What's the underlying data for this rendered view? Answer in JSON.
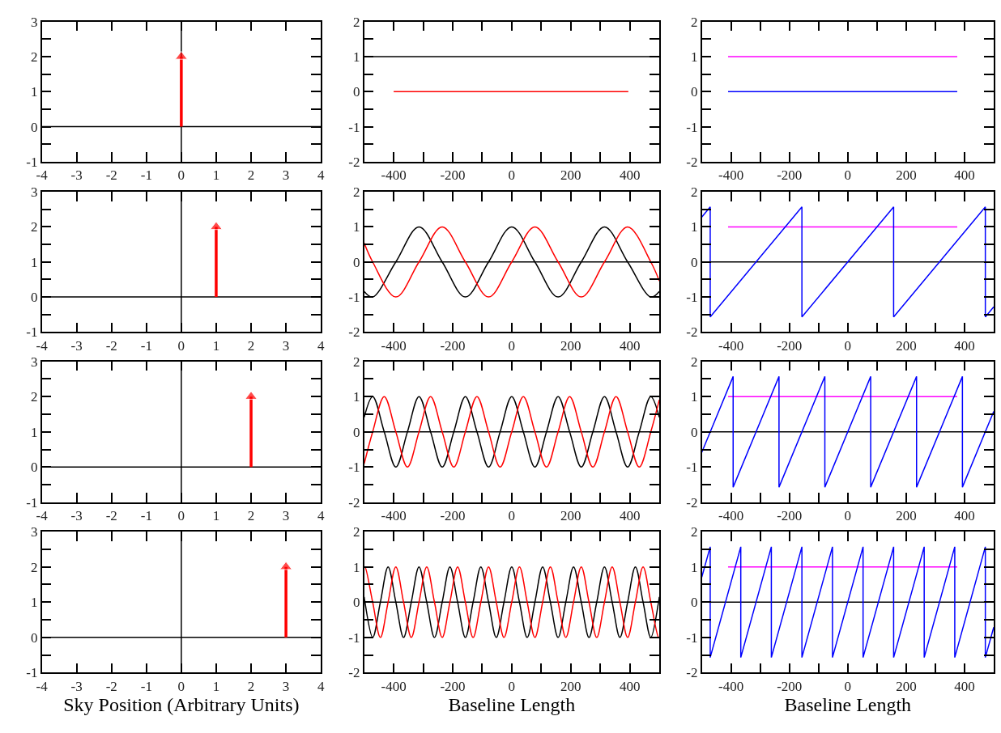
{
  "chart_data": [
    {
      "type": "line",
      "xlim": [
        -4,
        4
      ],
      "ylim": [
        -1,
        3
      ],
      "xticks": [
        -4,
        -3,
        -2,
        -1,
        0,
        1,
        2,
        3,
        4
      ],
      "yticks": [
        -1,
        {
          "value": -0.5,
          "label": null
        },
        0,
        {
          "value": 0.5,
          "label": null
        },
        1,
        {
          "value": 1.5,
          "label": null
        },
        2,
        {
          "value": 2.5,
          "label": null
        },
        3
      ],
      "grid": false,
      "ref_lines": [
        {
          "axis": "y",
          "value": 0,
          "color": "#000000"
        },
        {
          "axis": "x",
          "value": 0,
          "color": "#000000"
        }
      ],
      "series": [
        {
          "color": "#ff0000",
          "x": [
            0,
            0
          ],
          "values": [
            0,
            2
          ],
          "marker": "triangle"
        }
      ]
    },
    {
      "type": "line",
      "xlim": [
        -500,
        500
      ],
      "ylim": [
        -2,
        2
      ],
      "xticks": [
        -400,
        {
          "value": -300,
          "label": null
        },
        -200,
        {
          "value": -100,
          "label": null
        },
        0,
        {
          "value": 100,
          "label": null
        },
        200,
        {
          "value": 300,
          "label": null
        },
        400
      ],
      "yticks": [
        -2,
        {
          "value": -1.5,
          "label": null
        },
        -1,
        {
          "value": -0.5,
          "label": null
        },
        0,
        {
          "value": 0.5,
          "label": null
        },
        1,
        {
          "value": 1.5,
          "label": null
        },
        2
      ],
      "grid": false,
      "series": [
        {
          "color": "#000000",
          "x": [
            -500,
            500
          ],
          "values": [
            1,
            1
          ]
        },
        {
          "color": "#ff0000",
          "x": [
            -400,
            395
          ],
          "values": [
            0,
            0
          ]
        }
      ]
    },
    {
      "type": "line",
      "xlim": [
        -500,
        500
      ],
      "ylim": [
        -2,
        2
      ],
      "xticks": [
        -400,
        {
          "value": -300,
          "label": null
        },
        -200,
        {
          "value": -100,
          "label": null
        },
        0,
        {
          "value": 100,
          "label": null
        },
        200,
        {
          "value": 300,
          "label": null
        },
        400
      ],
      "yticks": [
        -2,
        {
          "value": -1.5,
          "label": null
        },
        -1,
        {
          "value": -0.5,
          "label": null
        },
        0,
        {
          "value": 0.5,
          "label": null
        },
        1,
        {
          "value": 1.5,
          "label": null
        },
        2
      ],
      "grid": false,
      "series": [
        {
          "color": "#ff00ff",
          "x": [
            -410,
            375
          ],
          "values": [
            1,
            1
          ]
        },
        {
          "color": "#0000ff",
          "x": [
            -410,
            375
          ],
          "values": [
            0,
            0
          ]
        }
      ]
    },
    {
      "type": "line",
      "xlim": [
        -4,
        4
      ],
      "ylim": [
        -1,
        3
      ],
      "xticks": [
        -4,
        -3,
        -2,
        -1,
        0,
        1,
        2,
        3,
        4
      ],
      "yticks": [
        -1,
        {
          "value": -0.5,
          "label": null
        },
        0,
        {
          "value": 0.5,
          "label": null
        },
        1,
        {
          "value": 1.5,
          "label": null
        },
        2,
        {
          "value": 2.5,
          "label": null
        },
        3
      ],
      "grid": false,
      "ref_lines": [
        {
          "axis": "y",
          "value": 0,
          "color": "#000000"
        },
        {
          "axis": "x",
          "value": 0,
          "color": "#000000"
        }
      ],
      "series": [
        {
          "color": "#ff0000",
          "x": [
            1,
            1
          ],
          "values": [
            0,
            2
          ],
          "marker": "triangle"
        }
      ]
    },
    {
      "type": "line",
      "xlim": [
        -500,
        500
      ],
      "ylim": [
        -2,
        2
      ],
      "xticks": [
        -400,
        {
          "value": -300,
          "label": null
        },
        -200,
        {
          "value": -100,
          "label": null
        },
        0,
        {
          "value": 100,
          "label": null
        },
        200,
        {
          "value": 300,
          "label": null
        },
        400
      ],
      "yticks": [
        -2,
        {
          "value": -1.5,
          "label": null
        },
        -1,
        {
          "value": -0.5,
          "label": null
        },
        0,
        {
          "value": 0.5,
          "label": null
        },
        1,
        {
          "value": 1.5,
          "label": null
        },
        2
      ],
      "grid": false,
      "ref_lines": [
        {
          "axis": "y",
          "value": 0,
          "color": "#000000"
        }
      ],
      "series": [
        {
          "color": "#000000",
          "x": [
            -500,
            -471.2,
            -392.7,
            -314.2,
            -235.6,
            -157.1,
            -78.5,
            0,
            78.5,
            157.1,
            235.6,
            314.2,
            392.7,
            471.2,
            500
          ],
          "values": [
            -0.84,
            -1,
            0,
            1,
            0,
            -1,
            0,
            1,
            0,
            -1,
            0,
            1,
            0,
            -1,
            -0.84
          ]
        },
        {
          "color": "#ff0000",
          "x": [
            -500,
            -471.2,
            -392.7,
            -314.2,
            -235.6,
            -157.1,
            -78.5,
            0,
            78.5,
            157.1,
            235.6,
            314.2,
            392.7,
            471.2,
            500
          ],
          "values": [
            0.54,
            0,
            -1,
            0,
            1,
            0,
            -1,
            0,
            1,
            0,
            -1,
            0,
            1,
            0,
            -0.54
          ]
        }
      ]
    },
    {
      "type": "line",
      "xlim": [
        -500,
        500
      ],
      "ylim": [
        -2,
        2
      ],
      "xticks": [
        -400,
        {
          "value": -300,
          "label": null
        },
        -200,
        {
          "value": -100,
          "label": null
        },
        0,
        {
          "value": 100,
          "label": null
        },
        200,
        {
          "value": 300,
          "label": null
        },
        400
      ],
      "yticks": [
        -2,
        {
          "value": -1.5,
          "label": null
        },
        -1,
        {
          "value": -0.5,
          "label": null
        },
        0,
        {
          "value": 0.5,
          "label": null
        },
        1,
        {
          "value": 1.5,
          "label": null
        },
        2
      ],
      "grid": false,
      "ref_lines": [
        {
          "axis": "y",
          "value": 0,
          "color": "#000000"
        }
      ],
      "series": [
        {
          "color": "#ff00ff",
          "x": [
            -410,
            375
          ],
          "values": [
            1,
            1
          ]
        },
        {
          "color": "#0000ff",
          "x": [
            -500,
            -471.2,
            -471.2,
            -157.1,
            -157.1,
            157.1,
            157.1,
            471.2,
            471.2,
            500
          ],
          "values": [
            1.28,
            1.57,
            -1.57,
            1.57,
            -1.57,
            1.57,
            -1.57,
            1.57,
            -1.57,
            -1.28
          ]
        }
      ]
    },
    {
      "type": "line",
      "xlim": [
        -4,
        4
      ],
      "ylim": [
        -1,
        3
      ],
      "xticks": [
        -4,
        -3,
        -2,
        -1,
        0,
        1,
        2,
        3,
        4
      ],
      "yticks": [
        -1,
        {
          "value": -0.5,
          "label": null
        },
        0,
        {
          "value": 0.5,
          "label": null
        },
        1,
        {
          "value": 1.5,
          "label": null
        },
        2,
        {
          "value": 2.5,
          "label": null
        },
        3
      ],
      "grid": false,
      "ref_lines": [
        {
          "axis": "y",
          "value": 0,
          "color": "#000000"
        },
        {
          "axis": "x",
          "value": 0,
          "color": "#000000"
        }
      ],
      "series": [
        {
          "color": "#ff0000",
          "x": [
            2,
            2
          ],
          "values": [
            0,
            2
          ],
          "marker": "triangle"
        }
      ]
    },
    {
      "type": "line",
      "xlim": [
        -500,
        500
      ],
      "ylim": [
        -2,
        2
      ],
      "xticks": [
        -400,
        {
          "value": -300,
          "label": null
        },
        -200,
        {
          "value": -100,
          "label": null
        },
        0,
        {
          "value": 100,
          "label": null
        },
        200,
        {
          "value": 300,
          "label": null
        },
        400
      ],
      "yticks": [
        -2,
        {
          "value": -1.5,
          "label": null
        },
        -1,
        {
          "value": -0.5,
          "label": null
        },
        0,
        {
          "value": 0.5,
          "label": null
        },
        1,
        {
          "value": 1.5,
          "label": null
        },
        2
      ],
      "grid": false,
      "ref_lines": [
        {
          "axis": "y",
          "value": 0,
          "color": "#000000"
        }
      ],
      "series": [
        {
          "color": "#000000",
          "x": [
            -500,
            -471.2,
            -432.0,
            -392.7,
            -353.4,
            -314.2,
            -274.9,
            -235.6,
            -196.3,
            -157.1,
            -117.8,
            -78.5,
            -39.3,
            0,
            39.3,
            78.5,
            117.8,
            157.1,
            196.3,
            235.6,
            274.9,
            314.2,
            353.4,
            392.7,
            432.0,
            471.2,
            500
          ],
          "values": [
            0.41,
            1,
            0,
            -1,
            0,
            1,
            0,
            -1,
            0,
            1,
            0,
            -1,
            0,
            1,
            0,
            -1,
            0,
            1,
            0,
            -1,
            0,
            1,
            0,
            -1,
            0,
            1,
            0.41
          ]
        },
        {
          "color": "#ff0000",
          "x": [
            -500,
            -471.2,
            -432.0,
            -392.7,
            -353.4,
            -314.2,
            -274.9,
            -235.6,
            -196.3,
            -157.1,
            -117.8,
            -78.5,
            -39.3,
            0,
            39.3,
            78.5,
            117.8,
            157.1,
            196.3,
            235.6,
            274.9,
            314.2,
            353.4,
            392.7,
            432.0,
            471.2,
            500
          ],
          "values": [
            -0.91,
            0,
            1,
            0,
            -1,
            0,
            1,
            0,
            -1,
            0,
            1,
            0,
            -1,
            0,
            1,
            0,
            -1,
            0,
            1,
            0,
            -1,
            0,
            1,
            0,
            -1,
            0,
            0.91
          ]
        }
      ]
    },
    {
      "type": "line",
      "xlim": [
        -500,
        500
      ],
      "ylim": [
        -2,
        2
      ],
      "xticks": [
        -400,
        {
          "value": -300,
          "label": null
        },
        -200,
        {
          "value": -100,
          "label": null
        },
        0,
        {
          "value": 100,
          "label": null
        },
        200,
        {
          "value": 300,
          "label": null
        },
        400
      ],
      "yticks": [
        -2,
        {
          "value": -1.5,
          "label": null
        },
        -1,
        {
          "value": -0.5,
          "label": null
        },
        0,
        {
          "value": 0.5,
          "label": null
        },
        1,
        {
          "value": 1.5,
          "label": null
        },
        2
      ],
      "grid": false,
      "ref_lines": [
        {
          "axis": "y",
          "value": 0,
          "color": "#000000"
        }
      ],
      "series": [
        {
          "color": "#ff00ff",
          "x": [
            -410,
            375
          ],
          "values": [
            1,
            1
          ]
        },
        {
          "color": "#0000ff",
          "x": [
            -500,
            -392.7,
            -392.7,
            -235.6,
            -235.6,
            -78.5,
            -78.5,
            78.5,
            78.5,
            235.6,
            235.6,
            392.7,
            392.7,
            500
          ],
          "values": [
            -0.58,
            1.57,
            -1.57,
            1.57,
            -1.57,
            1.57,
            -1.57,
            1.57,
            -1.57,
            1.57,
            -1.57,
            1.57,
            -1.57,
            0.58
          ]
        }
      ]
    },
    {
      "type": "line",
      "xlim": [
        -4,
        4
      ],
      "ylim": [
        -1,
        3
      ],
      "xticks": [
        -4,
        -3,
        -2,
        -1,
        0,
        1,
        2,
        3,
        4
      ],
      "yticks": [
        -1,
        {
          "value": -0.5,
          "label": null
        },
        0,
        {
          "value": 0.5,
          "label": null
        },
        1,
        {
          "value": 1.5,
          "label": null
        },
        2,
        {
          "value": 2.5,
          "label": null
        },
        3
      ],
      "grid": false,
      "xlabel": "Sky Position (Arbitrary Units)",
      "ref_lines": [
        {
          "axis": "y",
          "value": 0,
          "color": "#000000"
        },
        {
          "axis": "x",
          "value": 0,
          "color": "#000000"
        }
      ],
      "series": [
        {
          "color": "#ff0000",
          "x": [
            3,
            3
          ],
          "values": [
            0,
            2
          ],
          "marker": "triangle"
        }
      ]
    },
    {
      "type": "line",
      "xlim": [
        -500,
        500
      ],
      "ylim": [
        -2,
        2
      ],
      "xticks": [
        -400,
        {
          "value": -300,
          "label": null
        },
        -200,
        {
          "value": -100,
          "label": null
        },
        0,
        {
          "value": 100,
          "label": null
        },
        200,
        {
          "value": 300,
          "label": null
        },
        400
      ],
      "yticks": [
        -2,
        {
          "value": -1.5,
          "label": null
        },
        -1,
        {
          "value": -0.5,
          "label": null
        },
        0,
        {
          "value": 0.5,
          "label": null
        },
        1,
        {
          "value": 1.5,
          "label": null
        },
        2
      ],
      "grid": false,
      "xlabel": "Baseline Length",
      "ref_lines": [
        {
          "axis": "y",
          "value": 0,
          "color": "#000000"
        }
      ],
      "series": [
        {
          "color": "#000000",
          "x": [
            -500,
            -497.4,
            -471.2,
            -445.1,
            -418.9,
            -392.7,
            -366.5,
            -340.3,
            -314.2,
            -288.0,
            -261.8,
            -235.6,
            -209.4,
            -183.3,
            -157.1,
            -130.9,
            -104.7,
            -78.5,
            -52.4,
            -26.2,
            0,
            26.2,
            52.4,
            78.5,
            104.7,
            130.9,
            157.1,
            183.3,
            209.4,
            235.6,
            261.8,
            288.0,
            314.2,
            340.3,
            366.5,
            392.7,
            418.9,
            445.1,
            471.2,
            497.4,
            500
          ],
          "values": [
            0.15,
            0,
            -1,
            0,
            1,
            0,
            -1,
            0,
            1,
            0,
            -1,
            0,
            1,
            0,
            -1,
            0,
            1,
            0,
            -1,
            0,
            1,
            0,
            -1,
            0,
            1,
            0,
            -1,
            0,
            1,
            0,
            -1,
            0,
            1,
            0,
            -1,
            0,
            1,
            0,
            -1,
            0,
            0.15
          ]
        },
        {
          "color": "#ff0000",
          "x": [
            -500,
            -497.4,
            -471.2,
            -445.1,
            -418.9,
            -392.7,
            -366.5,
            -340.3,
            -314.2,
            -288.0,
            -261.8,
            -235.6,
            -209.4,
            -183.3,
            -157.1,
            -130.9,
            -104.7,
            -78.5,
            -52.4,
            -26.2,
            0,
            26.2,
            52.4,
            78.5,
            104.7,
            130.9,
            157.1,
            183.3,
            209.4,
            235.6,
            261.8,
            288.0,
            314.2,
            340.3,
            366.5,
            392.7,
            418.9,
            445.1,
            471.2,
            497.4,
            500
          ],
          "values": [
            0.99,
            1,
            0,
            -1,
            0,
            1,
            0,
            -1,
            0,
            1,
            0,
            -1,
            0,
            1,
            0,
            -1,
            0,
            1,
            0,
            -1,
            0,
            1,
            0,
            -1,
            0,
            1,
            0,
            -1,
            0,
            1,
            0,
            -1,
            0,
            1,
            0,
            -1,
            0,
            1,
            0,
            -1,
            -0.99
          ]
        }
      ]
    },
    {
      "type": "line",
      "xlim": [
        -500,
        500
      ],
      "ylim": [
        -2,
        2
      ],
      "xticks": [
        -400,
        {
          "value": -300,
          "label": null
        },
        -200,
        {
          "value": -100,
          "label": null
        },
        0,
        {
          "value": 100,
          "label": null
        },
        200,
        {
          "value": 300,
          "label": null
        },
        400
      ],
      "yticks": [
        -2,
        {
          "value": -1.5,
          "label": null
        },
        -1,
        {
          "value": -0.5,
          "label": null
        },
        0,
        {
          "value": 0.5,
          "label": null
        },
        1,
        {
          "value": 1.5,
          "label": null
        },
        2
      ],
      "grid": false,
      "xlabel": "Baseline Length",
      "ref_lines": [
        {
          "axis": "y",
          "value": 0,
          "color": "#000000"
        }
      ],
      "series": [
        {
          "color": "#ff00ff",
          "x": [
            -410,
            375
          ],
          "values": [
            1,
            1
          ]
        },
        {
          "color": "#0000ff",
          "x": [
            -500,
            -471.2,
            -471.2,
            -366.5,
            -366.5,
            -261.8,
            -261.8,
            -157.1,
            -157.1,
            -52.4,
            -52.4,
            52.4,
            52.4,
            157.1,
            157.1,
            261.8,
            261.8,
            366.5,
            366.5,
            471.2,
            471.2,
            500
          ],
          "values": [
            0.71,
            1.57,
            -1.57,
            1.57,
            -1.57,
            1.57,
            -1.57,
            1.57,
            -1.57,
            1.57,
            -1.57,
            1.57,
            -1.57,
            1.57,
            -1.57,
            1.57,
            -1.57,
            1.57,
            -1.57,
            1.57,
            -1.57,
            -0.71
          ]
        }
      ]
    }
  ]
}
